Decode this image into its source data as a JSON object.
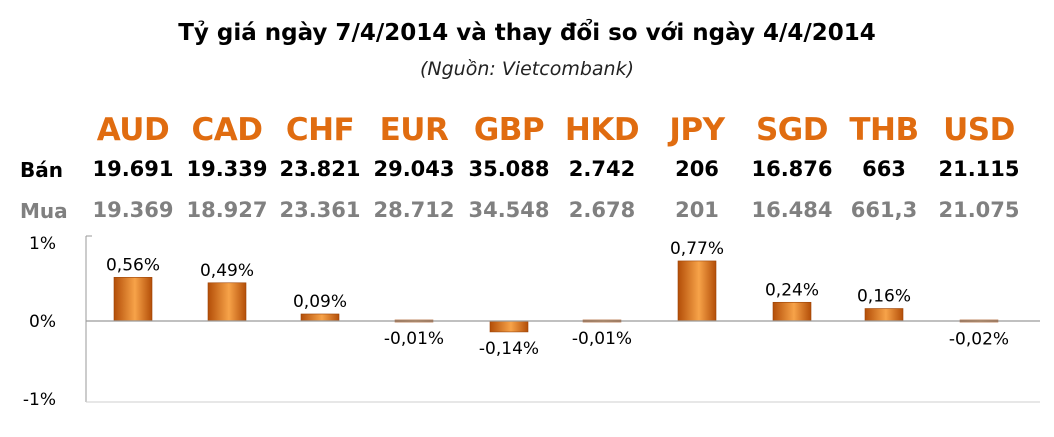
{
  "header": {
    "title": "Tỷ giá ngày 7/4/2014 và thay đổi so với ngày 4/4/2014",
    "subtitle": "(Nguồn: Vietcombank)"
  },
  "rows": {
    "sell_label": "Bán",
    "buy_label": "Mua"
  },
  "currencies": [
    {
      "code": "AUD",
      "sell": "19.691",
      "buy": "19.369"
    },
    {
      "code": "CAD",
      "sell": "19.339",
      "buy": "18.927"
    },
    {
      "code": "CHF",
      "sell": "23.821",
      "buy": "23.361"
    },
    {
      "code": "EUR",
      "sell": "29.043",
      "buy": "28.712"
    },
    {
      "code": "GBP",
      "sell": "35.088",
      "buy": "34.548"
    },
    {
      "code": "HKD",
      "sell": "2.742",
      "buy": "2.678"
    },
    {
      "code": "JPY",
      "sell": "206",
      "buy": "201"
    },
    {
      "code": "SGD",
      "sell": "16.876",
      "buy": "16.484"
    },
    {
      "code": "THB",
      "sell": "663",
      "buy": "661,3"
    },
    {
      "code": "USD",
      "sell": "21.115",
      "buy": "21.075"
    }
  ],
  "colors": {
    "accent": "#e06c10",
    "bar_light": "#f7a349",
    "bar_dark": "#b34e08",
    "buy_text": "#808080"
  },
  "chart_data": {
    "type": "bar",
    "categories": [
      "AUD",
      "CAD",
      "CHF",
      "EUR",
      "GBP",
      "HKD",
      "JPY",
      "SGD",
      "THB",
      "USD"
    ],
    "values": [
      0.56,
      0.49,
      0.09,
      -0.01,
      -0.14,
      -0.01,
      0.77,
      0.24,
      0.16,
      -0.02
    ],
    "data_labels": [
      "0,56%",
      "0,49%",
      "0,09%",
      "-0,01%",
      "-0,14%",
      "-0,01%",
      "0,77%",
      "0,24%",
      "0,16%",
      "-0,02%"
    ],
    "ylim": [
      -1,
      1
    ],
    "yticks": [
      1,
      0,
      -1
    ],
    "ytick_labels": [
      "1%",
      "0%",
      "-1%"
    ],
    "grid": false
  }
}
